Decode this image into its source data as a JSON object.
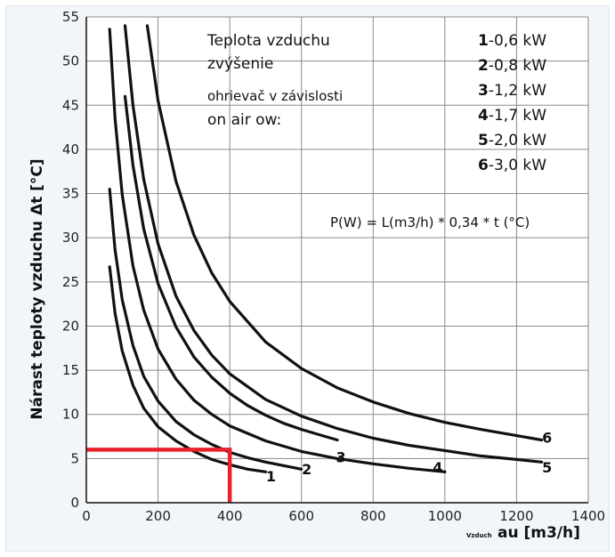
{
  "chart_data": {
    "type": "line",
    "title": "",
    "ylabel": "Nárast teploty vzduchu Δt [°C]",
    "xlabel_small": "Vzduch",
    "xlabel": "au [m3/h]",
    "xlim": [
      0,
      1400
    ],
    "ylim": [
      0,
      55
    ],
    "x_ticks": [
      0,
      200,
      400,
      600,
      800,
      1000,
      1200,
      1400
    ],
    "y_ticks": [
      0,
      5,
      10,
      15,
      20,
      25,
      30,
      35,
      40,
      45,
      50,
      55
    ],
    "grid": true,
    "annotation_lines": [
      "Teplota vzduchu",
      "zvýšenie",
      "ohrievač v závislosti",
      "on air ow:"
    ],
    "legend": [
      {
        "num": "1",
        "text": "-0,6 kW"
      },
      {
        "num": "2",
        "text": "-0,8 kW"
      },
      {
        "num": "3",
        "text": "-1,2 kW"
      },
      {
        "num": "4",
        "text": "-1,7 kW"
      },
      {
        "num": "5",
        "text": "-2,0 kW"
      },
      {
        "num": "6",
        "text": "-3,0 kW"
      }
    ],
    "formula": "P(W) = L(m3/h) * 0,34 * t (°C)",
    "series": [
      {
        "label": "1",
        "x": [
          65,
          80,
          100,
          130,
          160,
          200,
          250,
          300,
          350,
          400,
          450,
          500
        ],
        "y": [
          26.7,
          21.5,
          17.2,
          13.3,
          10.7,
          8.6,
          7.0,
          5.8,
          4.9,
          4.3,
          3.8,
          3.5
        ]
      },
      {
        "label": "2",
        "x": [
          65,
          80,
          100,
          130,
          160,
          200,
          250,
          300,
          350,
          400,
          450,
          500,
          550,
          600
        ],
        "y": [
          35.5,
          28.7,
          23.0,
          17.8,
          14.3,
          11.5,
          9.2,
          7.7,
          6.6,
          5.7,
          5.1,
          4.6,
          4.2,
          3.8
        ]
      },
      {
        "label": "3",
        "x": [
          108,
          130,
          160,
          200,
          250,
          300,
          350,
          400,
          450,
          500,
          550,
          600,
          650,
          700
        ],
        "y": [
          46.0,
          38.2,
          31.0,
          24.8,
          19.9,
          16.5,
          14.2,
          12.4,
          11.0,
          9.9,
          9.0,
          8.3,
          7.7,
          7.1
        ]
      },
      {
        "label": "4",
        "x": [
          65,
          80,
          100,
          130,
          160,
          200,
          250,
          300,
          350,
          400,
          500,
          600,
          700,
          800,
          900,
          1000
        ],
        "y": [
          53.6,
          43.6,
          34.9,
          26.8,
          21.8,
          17.4,
          14.0,
          11.6,
          10.0,
          8.7,
          7.0,
          5.8,
          5.0,
          4.4,
          3.9,
          3.5
        ]
      },
      {
        "label": "5",
        "x": [
          108,
          130,
          160,
          200,
          250,
          300,
          350,
          400,
          500,
          600,
          700,
          800,
          900,
          1000,
          1100,
          1200,
          1270
        ],
        "y": [
          54.0,
          45.0,
          36.6,
          29.3,
          23.4,
          19.5,
          16.7,
          14.6,
          11.7,
          9.8,
          8.4,
          7.3,
          6.5,
          5.9,
          5.3,
          4.9,
          4.6
        ]
      },
      {
        "label": "6",
        "x": [
          170,
          200,
          250,
          300,
          350,
          400,
          500,
          600,
          700,
          800,
          900,
          1000,
          1100,
          1200,
          1270
        ],
        "y": [
          54.0,
          45.5,
          36.4,
          30.3,
          26.0,
          22.8,
          18.2,
          15.2,
          13.0,
          11.4,
          10.1,
          9.1,
          8.3,
          7.6,
          7.1
        ]
      }
    ],
    "curve_labels": [
      {
        "text": "1",
        "x": 515,
        "y": 2.4
      },
      {
        "text": "2",
        "x": 615,
        "y": 3.2
      },
      {
        "text": "3",
        "x": 710,
        "y": 4.6
      },
      {
        "text": "4",
        "x": 980,
        "y": 3.4
      },
      {
        "text": "5",
        "x": 1285,
        "y": 3.4
      },
      {
        "text": "6",
        "x": 1285,
        "y": 6.8
      }
    ],
    "highlight": {
      "color": "#e8202a",
      "x": 400,
      "y": 6
    }
  }
}
